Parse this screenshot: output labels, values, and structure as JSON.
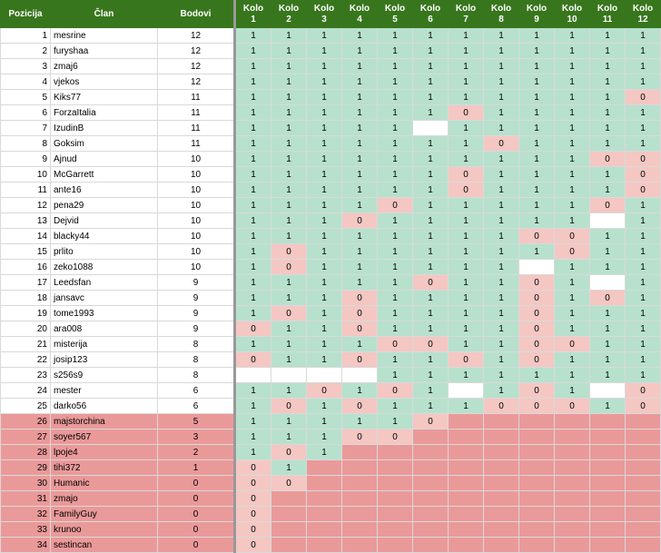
{
  "headers": {
    "position": "Pozicija",
    "member": "Član",
    "points": "Bodovi",
    "rounds": [
      {
        "top": "Kolo",
        "num": "1"
      },
      {
        "top": "Kolo",
        "num": "2"
      },
      {
        "top": "Kolo",
        "num": "3"
      },
      {
        "top": "Kolo",
        "num": "4"
      },
      {
        "top": "Kolo",
        "num": "5"
      },
      {
        "top": "Kolo",
        "num": "6"
      },
      {
        "top": "Kolo",
        "num": "7"
      },
      {
        "top": "Kolo",
        "num": "8"
      },
      {
        "top": "Kolo",
        "num": "9"
      },
      {
        "top": "Kolo",
        "num": "10"
      },
      {
        "top": "Kolo",
        "num": "11"
      },
      {
        "top": "Kolo",
        "num": "12"
      }
    ]
  },
  "colors": {
    "header_bg": "#38761d",
    "hit": "#b7e1cd",
    "miss": "#f4c7c3",
    "eliminated": "#ea9999",
    "empty": "#ffffff"
  },
  "rows": [
    {
      "pos": "1",
      "name": "mesrine",
      "pts": "12",
      "r": [
        "1",
        "1",
        "1",
        "1",
        "1",
        "1",
        "1",
        "1",
        "1",
        "1",
        "1",
        "1"
      ]
    },
    {
      "pos": "2",
      "name": "furyshaa",
      "pts": "12",
      "r": [
        "1",
        "1",
        "1",
        "1",
        "1",
        "1",
        "1",
        "1",
        "1",
        "1",
        "1",
        "1"
      ]
    },
    {
      "pos": "3",
      "name": "zmaj6",
      "pts": "12",
      "r": [
        "1",
        "1",
        "1",
        "1",
        "1",
        "1",
        "1",
        "1",
        "1",
        "1",
        "1",
        "1"
      ]
    },
    {
      "pos": "4",
      "name": "vjekos",
      "pts": "12",
      "r": [
        "1",
        "1",
        "1",
        "1",
        "1",
        "1",
        "1",
        "1",
        "1",
        "1",
        "1",
        "1"
      ]
    },
    {
      "pos": "5",
      "name": "Kiks77",
      "pts": "11",
      "r": [
        "1",
        "1",
        "1",
        "1",
        "1",
        "1",
        "1",
        "1",
        "1",
        "1",
        "1",
        "0"
      ]
    },
    {
      "pos": "6",
      "name": "ForzaItalia",
      "pts": "11",
      "r": [
        "1",
        "1",
        "1",
        "1",
        "1",
        "1",
        "0",
        "1",
        "1",
        "1",
        "1",
        "1"
      ]
    },
    {
      "pos": "7",
      "name": "IzudinB",
      "pts": "11",
      "r": [
        "1",
        "1",
        "1",
        "1",
        "1",
        "",
        "1",
        "1",
        "1",
        "1",
        "1",
        "1"
      ]
    },
    {
      "pos": "8",
      "name": "Goksim",
      "pts": "11",
      "r": [
        "1",
        "1",
        "1",
        "1",
        "1",
        "1",
        "1",
        "0",
        "1",
        "1",
        "1",
        "1"
      ]
    },
    {
      "pos": "9",
      "name": "Ajnud",
      "pts": "10",
      "r": [
        "1",
        "1",
        "1",
        "1",
        "1",
        "1",
        "1",
        "1",
        "1",
        "1",
        "0",
        "0"
      ]
    },
    {
      "pos": "10",
      "name": "McGarrett",
      "pts": "10",
      "r": [
        "1",
        "1",
        "1",
        "1",
        "1",
        "1",
        "0",
        "1",
        "1",
        "1",
        "1",
        "0"
      ]
    },
    {
      "pos": "11",
      "name": "ante16",
      "pts": "10",
      "r": [
        "1",
        "1",
        "1",
        "1",
        "1",
        "1",
        "0",
        "1",
        "1",
        "1",
        "1",
        "0"
      ]
    },
    {
      "pos": "12",
      "name": "pena29",
      "pts": "10",
      "r": [
        "1",
        "1",
        "1",
        "1",
        "0",
        "1",
        "1",
        "1",
        "1",
        "1",
        "0",
        "1"
      ]
    },
    {
      "pos": "13",
      "name": "Dejvid",
      "pts": "10",
      "r": [
        "1",
        "1",
        "1",
        "0",
        "1",
        "1",
        "1",
        "1",
        "1",
        "1",
        "",
        "1"
      ]
    },
    {
      "pos": "14",
      "name": "blacky44",
      "pts": "10",
      "r": [
        "1",
        "1",
        "1",
        "1",
        "1",
        "1",
        "1",
        "1",
        "0",
        "0",
        "1",
        "1"
      ]
    },
    {
      "pos": "15",
      "name": "prlito",
      "pts": "10",
      "r": [
        "1",
        "0",
        "1",
        "1",
        "1",
        "1",
        "1",
        "1",
        "1",
        "0",
        "1",
        "1"
      ]
    },
    {
      "pos": "16",
      "name": "zeko1088",
      "pts": "10",
      "r": [
        "1",
        "0",
        "1",
        "1",
        "1",
        "1",
        "1",
        "1",
        "",
        "1",
        "1",
        "1"
      ]
    },
    {
      "pos": "17",
      "name": "Leedsfan",
      "pts": "9",
      "r": [
        "1",
        "1",
        "1",
        "1",
        "1",
        "0",
        "1",
        "1",
        "0",
        "1",
        "",
        "1"
      ]
    },
    {
      "pos": "18",
      "name": "jansavc",
      "pts": "9",
      "r": [
        "1",
        "1",
        "1",
        "0",
        "1",
        "1",
        "1",
        "1",
        "0",
        "1",
        "0",
        "1"
      ]
    },
    {
      "pos": "19",
      "name": "tome1993",
      "pts": "9",
      "r": [
        "1",
        "0",
        "1",
        "0",
        "1",
        "1",
        "1",
        "1",
        "0",
        "1",
        "1",
        "1"
      ]
    },
    {
      "pos": "20",
      "name": "ara008",
      "pts": "9",
      "r": [
        "0",
        "1",
        "1",
        "0",
        "1",
        "1",
        "1",
        "1",
        "0",
        "1",
        "1",
        "1"
      ]
    },
    {
      "pos": "21",
      "name": "misterija",
      "pts": "8",
      "r": [
        "1",
        "1",
        "1",
        "1",
        "0",
        "0",
        "1",
        "1",
        "0",
        "0",
        "1",
        "1"
      ]
    },
    {
      "pos": "22",
      "name": "josip123",
      "pts": "8",
      "r": [
        "0",
        "1",
        "1",
        "0",
        "1",
        "1",
        "0",
        "1",
        "0",
        "1",
        "1",
        "1"
      ]
    },
    {
      "pos": "23",
      "name": "s256s9",
      "pts": "8",
      "r": [
        "",
        "",
        "",
        "",
        "1",
        "1",
        "1",
        "1",
        "1",
        "1",
        "1",
        "1"
      ]
    },
    {
      "pos": "24",
      "name": "mester",
      "pts": "6",
      "r": [
        "1",
        "1",
        "0",
        "1",
        "0",
        "1",
        "",
        "1",
        "0",
        "1",
        "",
        "0"
      ]
    },
    {
      "pos": "25",
      "name": "darko56",
      "pts": "6",
      "r": [
        "1",
        "0",
        "1",
        "0",
        "1",
        "1",
        "1",
        "0",
        "0",
        "0",
        "1",
        "0"
      ]
    },
    {
      "pos": "26",
      "name": "majstorchina",
      "pts": "5",
      "r": [
        "1",
        "1",
        "1",
        "1",
        "1",
        "0"
      ]
    },
    {
      "pos": "27",
      "name": "soyer567",
      "pts": "3",
      "r": [
        "1",
        "1",
        "1",
        "0",
        "0"
      ]
    },
    {
      "pos": "28",
      "name": "lpoje4",
      "pts": "2",
      "r": [
        "1",
        "0",
        "1"
      ]
    },
    {
      "pos": "29",
      "name": "tihi372",
      "pts": "1",
      "r": [
        "0",
        "1"
      ]
    },
    {
      "pos": "30",
      "name": "Humanic",
      "pts": "0",
      "r": [
        "0",
        "0"
      ]
    },
    {
      "pos": "31",
      "name": "zmajo",
      "pts": "0",
      "r": [
        "0"
      ]
    },
    {
      "pos": "32",
      "name": "FamilyGuy",
      "pts": "0",
      "r": [
        "0"
      ]
    },
    {
      "pos": "33",
      "name": "krunoo",
      "pts": "0",
      "r": [
        "0"
      ]
    },
    {
      "pos": "34",
      "name": "sestincan",
      "pts": "0",
      "r": [
        "0"
      ]
    }
  ]
}
